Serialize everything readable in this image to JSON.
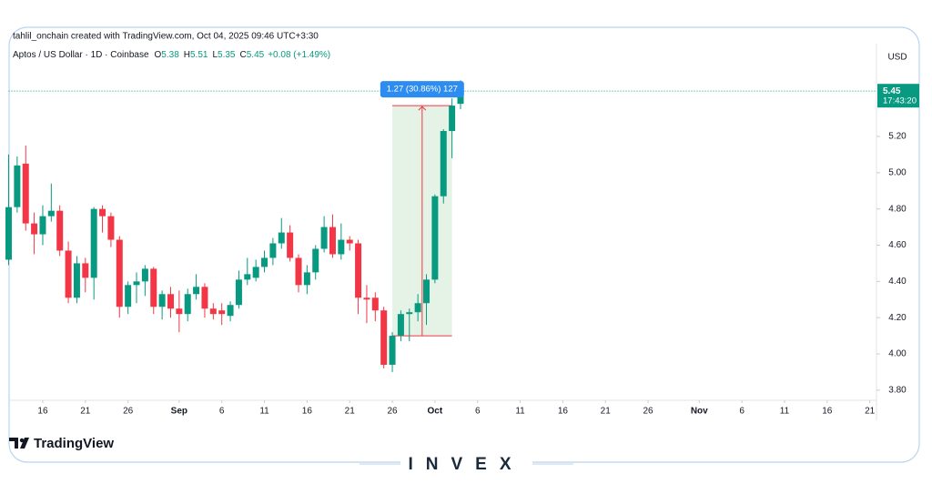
{
  "header": {
    "attribution": "tahlil_onchain created with TradingView.com, Oct 04, 2025 09:46 UTC+3:30"
  },
  "chart_data": {
    "type": "candlestick",
    "symbol": "Aptos / US Dollar · 1D · Coinbase",
    "legend": [
      {
        "label": "O",
        "value": 5.38
      },
      {
        "label": "H",
        "value": 5.51
      },
      {
        "label": "L",
        "value": 5.35
      },
      {
        "label": "C",
        "value": 5.45
      }
    ],
    "change": "+0.08 (+1.49%)",
    "currency": "USD",
    "last_price": {
      "value": 5.45,
      "label": "5.45",
      "countdown": "17:43:20"
    },
    "up_color": "#089981",
    "down_color": "#f23645",
    "grid": false,
    "x": [
      "Aug 12",
      "Aug 13",
      "Aug 14",
      "Aug 15",
      "Aug 16",
      "Aug 17",
      "Aug 18",
      "Aug 19",
      "Aug 20",
      "Aug 21",
      "Aug 22",
      "Aug 23",
      "Aug 24",
      "Aug 25",
      "Aug 26",
      "Aug 27",
      "Aug 28",
      "Aug 29",
      "Aug 30",
      "Aug 31",
      "Sep 1",
      "Sep 2",
      "Sep 3",
      "Sep 4",
      "Sep 5",
      "Sep 6",
      "Sep 7",
      "Sep 8",
      "Sep 9",
      "Sep 10",
      "Sep 11",
      "Sep 12",
      "Sep 13",
      "Sep 14",
      "Sep 15",
      "Sep 16",
      "Sep 17",
      "Sep 18",
      "Sep 19",
      "Sep 20",
      "Sep 21",
      "Sep 22",
      "Sep 23",
      "Sep 24",
      "Sep 25",
      "Sep 26",
      "Sep 27",
      "Sep 28",
      "Sep 29",
      "Sep 30",
      "Oct 1",
      "Oct 2",
      "Oct 3",
      "Oct 4"
    ],
    "open": [
      4.52,
      4.81,
      5.05,
      4.72,
      4.66,
      4.76,
      4.79,
      4.57,
      4.31,
      4.5,
      4.42,
      4.8,
      4.76,
      4.63,
      4.26,
      4.38,
      4.4,
      4.47,
      4.26,
      4.33,
      4.25,
      4.22,
      4.33,
      4.37,
      4.25,
      4.24,
      4.21,
      4.27,
      4.41,
      4.42,
      4.48,
      4.53,
      4.61,
      4.67,
      4.53,
      4.38,
      4.45,
      4.58,
      4.7,
      4.55,
      4.63,
      4.61,
      4.31,
      4.31,
      4.24,
      3.94,
      4.1,
      4.22,
      4.23,
      4.28,
      4.41,
      4.87,
      5.23,
      5.38
    ],
    "high": [
      5.1,
      5.09,
      5.15,
      4.78,
      4.82,
      4.94,
      4.82,
      4.62,
      4.54,
      4.53,
      4.81,
      4.82,
      4.78,
      4.65,
      4.4,
      4.45,
      4.49,
      4.48,
      4.35,
      4.37,
      4.35,
      4.36,
      4.44,
      4.39,
      4.28,
      4.28,
      4.29,
      4.46,
      4.53,
      4.52,
      4.57,
      4.64,
      4.75,
      4.71,
      4.55,
      4.49,
      4.6,
      4.76,
      4.77,
      4.72,
      4.65,
      4.63,
      4.38,
      4.34,
      4.26,
      4.12,
      4.24,
      4.25,
      4.33,
      4.44,
      4.88,
      5.24,
      5.41,
      5.51
    ],
    "low": [
      4.49,
      4.78,
      4.68,
      4.55,
      4.6,
      4.73,
      4.54,
      4.28,
      4.28,
      4.34,
      4.3,
      4.67,
      4.59,
      4.2,
      4.22,
      4.28,
      4.32,
      4.22,
      4.19,
      4.2,
      4.12,
      4.18,
      4.3,
      4.2,
      4.19,
      4.16,
      4.18,
      4.25,
      4.38,
      4.4,
      4.45,
      4.49,
      4.58,
      4.51,
      4.34,
      4.33,
      4.41,
      4.56,
      4.53,
      4.52,
      4.57,
      4.22,
      4.17,
      4.18,
      3.92,
      3.9,
      4.07,
      4.07,
      4.18,
      4.16,
      4.39,
      4.83,
      5.08,
      5.35
    ],
    "close": [
      4.81,
      5.04,
      4.72,
      4.66,
      4.76,
      4.79,
      4.57,
      4.31,
      4.5,
      4.42,
      4.8,
      4.76,
      4.63,
      4.26,
      4.38,
      4.4,
      4.47,
      4.26,
      4.33,
      4.25,
      4.22,
      4.33,
      4.37,
      4.25,
      4.22,
      4.22,
      4.27,
      4.41,
      4.44,
      4.48,
      4.53,
      4.61,
      4.67,
      4.53,
      4.38,
      4.45,
      4.58,
      4.7,
      4.55,
      4.63,
      4.61,
      4.31,
      4.3,
      4.24,
      3.94,
      4.1,
      4.22,
      4.23,
      4.28,
      4.41,
      4.87,
      5.23,
      5.37,
      5.45
    ],
    "xlim": [
      "Aug 12",
      "Nov 22"
    ],
    "xticks": [
      {
        "value": "Aug 16",
        "label": "16"
      },
      {
        "value": "Aug 21",
        "label": "21"
      },
      {
        "value": "Aug 26",
        "label": "26"
      },
      {
        "value": "Sep 1",
        "label": "Sep"
      },
      {
        "value": "Sep 6",
        "label": "6"
      },
      {
        "value": "Sep 11",
        "label": "11"
      },
      {
        "value": "Sep 16",
        "label": "16"
      },
      {
        "value": "Sep 21",
        "label": "21"
      },
      {
        "value": "Sep 26",
        "label": "26"
      },
      {
        "value": "Oct 1",
        "label": "Oct"
      },
      {
        "value": "Oct 6",
        "label": "6"
      },
      {
        "value": "Oct 11",
        "label": "11"
      },
      {
        "value": "Oct 16",
        "label": "16"
      },
      {
        "value": "Oct 21",
        "label": "21"
      },
      {
        "value": "Oct 26",
        "label": "26"
      },
      {
        "value": "Nov 1",
        "label": "Nov"
      },
      {
        "value": "Nov 6",
        "label": "6"
      },
      {
        "value": "Nov 11",
        "label": "11"
      },
      {
        "value": "Nov 16",
        "label": "16"
      },
      {
        "value": "Nov 21",
        "label": "21"
      }
    ],
    "ylim": [
      3.744,
      5.712
    ],
    "yticks": [
      {
        "value": 3.8,
        "label": "3.80"
      },
      {
        "value": 4.0,
        "label": "4.00"
      },
      {
        "value": 4.2,
        "label": "4.20"
      },
      {
        "value": 4.4,
        "label": "4.40"
      },
      {
        "value": 4.6,
        "label": "4.60"
      },
      {
        "value": 4.8,
        "label": "4.80"
      },
      {
        "value": 5.0,
        "label": "5.00"
      },
      {
        "value": 5.2,
        "label": "5.20"
      }
    ],
    "measure": {
      "label": "1.27 (30.86%) 127",
      "from": "Sep 26",
      "to": "Oct 3",
      "low": 4.1,
      "high": 5.37
    }
  },
  "footer": {
    "brand": "TradingView",
    "watermark": "INVEX"
  }
}
